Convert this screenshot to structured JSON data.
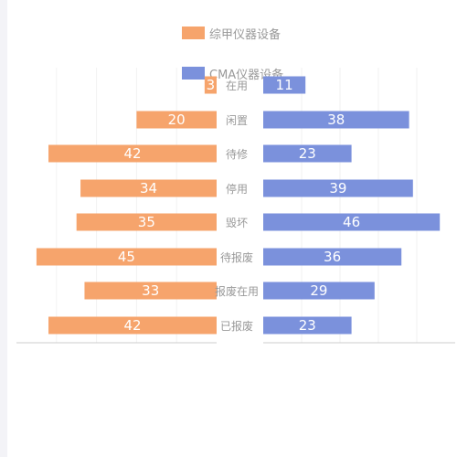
{
  "chart_data": {
    "type": "bar",
    "orientation": "horizontal-butterfly",
    "categories": [
      "在用",
      "闲置",
      "待修",
      "停用",
      "毁坏",
      "待报废",
      "报废在用",
      "已报废"
    ],
    "series": [
      {
        "name": "综甲仪器设备",
        "values": [
          3,
          20,
          42,
          34,
          35,
          45,
          33,
          42
        ],
        "color": "#f6a46c",
        "side": "left"
      },
      {
        "name": "CMA仪器设备",
        "values": [
          11,
          38,
          23,
          39,
          46,
          36,
          29,
          23
        ],
        "color": "#7b91dc",
        "side": "right"
      }
    ],
    "xlim": [
      0,
      50
    ],
    "grid": true,
    "legend_position": "top-center",
    "data_labels": true
  },
  "colors": {
    "page_background": "#f3f3f7",
    "panel_background": "#ffffff",
    "axis": "#cccccc",
    "grid": "#f2f2f2",
    "label_text": "#999999"
  }
}
